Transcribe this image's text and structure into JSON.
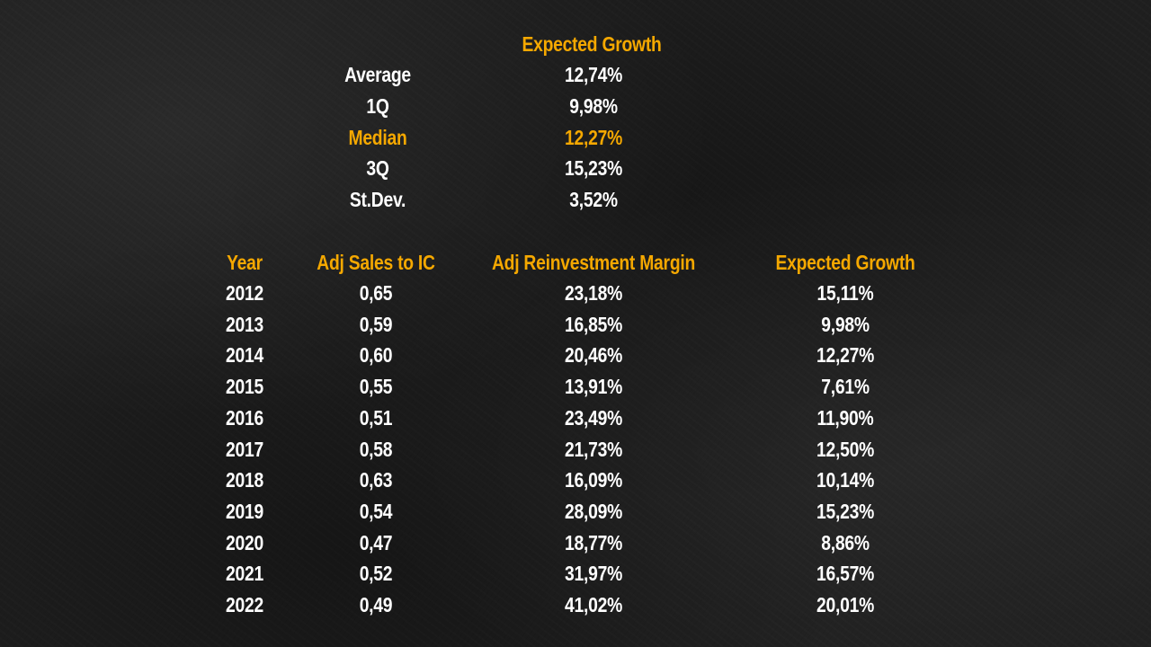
{
  "summary": {
    "title": "Expected Growth",
    "stats": [
      {
        "label": "Average",
        "value": "12,74%",
        "highlight": false
      },
      {
        "label": "1Q",
        "value": "9,98%",
        "highlight": false
      },
      {
        "label": "Median",
        "value": "12,27%",
        "highlight": true
      },
      {
        "label": "3Q",
        "value": "15,23%",
        "highlight": false
      },
      {
        "label": "St.Dev.",
        "value": "3,52%",
        "highlight": false
      }
    ]
  },
  "table": {
    "headers": [
      "Year",
      "Adj Sales to IC",
      "Adj Reinvestment Margin",
      "Expected Growth"
    ],
    "rows": [
      [
        "2012",
        "0,65",
        "23,18%",
        "15,11%"
      ],
      [
        "2013",
        "0,59",
        "16,85%",
        "9,98%"
      ],
      [
        "2014",
        "0,60",
        "20,46%",
        "12,27%"
      ],
      [
        "2015",
        "0,55",
        "13,91%",
        "7,61%"
      ],
      [
        "2016",
        "0,51",
        "23,49%",
        "11,90%"
      ],
      [
        "2017",
        "0,58",
        "21,73%",
        "12,50%"
      ],
      [
        "2018",
        "0,63",
        "16,09%",
        "10,14%"
      ],
      [
        "2019",
        "0,54",
        "28,09%",
        "15,23%"
      ],
      [
        "2020",
        "0,47",
        "18,77%",
        "8,86%"
      ],
      [
        "2021",
        "0,52",
        "31,97%",
        "16,57%"
      ],
      [
        "2022",
        "0,49",
        "41,02%",
        "20,01%"
      ]
    ]
  },
  "colors": {
    "accent": "#f5a800",
    "text": "#ffffff",
    "background": "#1f1f1f"
  }
}
